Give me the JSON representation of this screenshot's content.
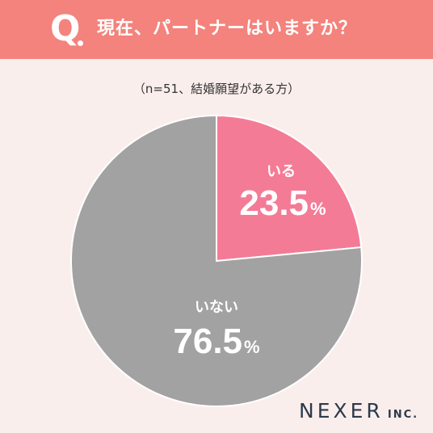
{
  "header": {
    "q_mark": "Q",
    "question": "現在、パートナーはいますか？"
  },
  "sample_note": "（n=51、結婚願望がある方）",
  "chart_data": {
    "type": "pie",
    "slices": [
      {
        "label": "いる",
        "value": 23.5,
        "display": "23.5",
        "unit": "%",
        "color": "#f47b96"
      },
      {
        "label": "いない",
        "value": 76.5,
        "display": "76.5",
        "unit": "%",
        "color": "#a2a2a2"
      }
    ],
    "start": "12 o'clock",
    "direction": "clockwise"
  },
  "brand": {
    "name": "NEXER",
    "suffix": "INC."
  },
  "colors": {
    "banner": "#f3837c",
    "background": "#faeeed"
  }
}
